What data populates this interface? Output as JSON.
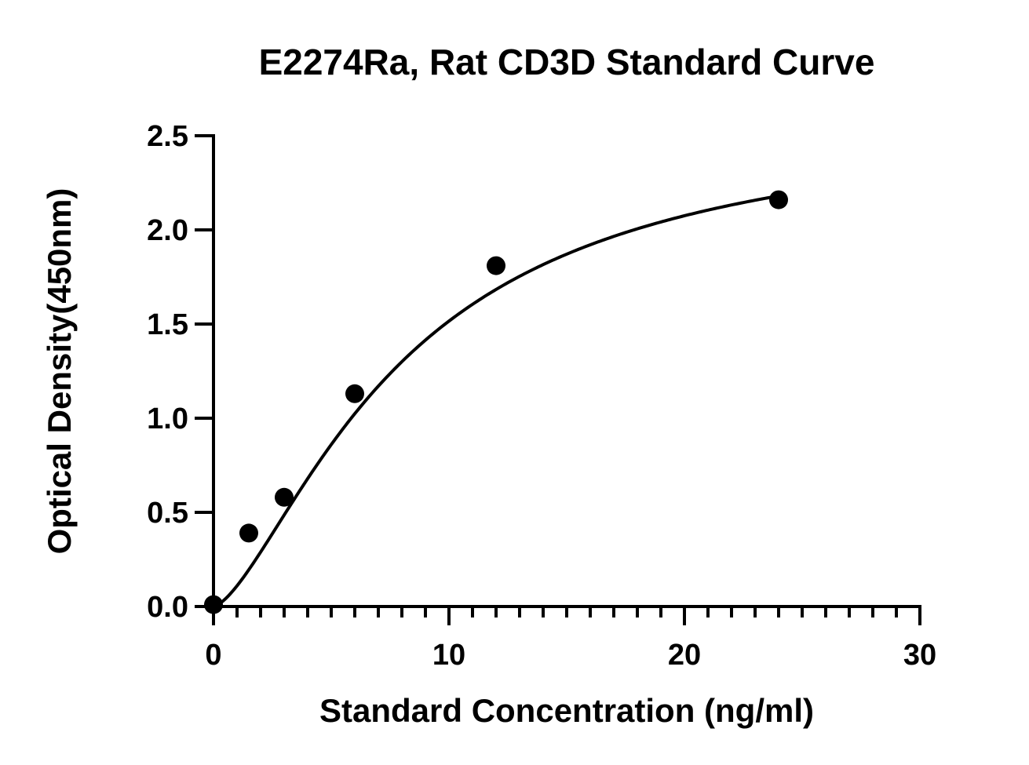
{
  "chart_data": {
    "type": "scatter",
    "title": "E2274Ra, Rat CD3D Standard Curve",
    "xlabel": "Standard Concentration (ng/ml)",
    "ylabel": "Optical Density(450nm)",
    "xlim": [
      0,
      30
    ],
    "ylim": [
      0,
      2.5
    ],
    "x_ticks": [
      0,
      10,
      20,
      30
    ],
    "x_tick_labels": [
      "0",
      "10",
      "20",
      "30"
    ],
    "x_minor_step": 1,
    "y_ticks": [
      0,
      0.5,
      1.0,
      1.5,
      2.0,
      2.5
    ],
    "y_tick_labels": [
      "0.0",
      "0.5",
      "1.0",
      "1.5",
      "2.0",
      "2.5"
    ],
    "grid": false,
    "legend": "none",
    "series": [
      {
        "x": [
          0,
          1.5,
          3,
          6,
          12,
          24
        ],
        "y": [
          0.01,
          0.39,
          0.58,
          1.13,
          1.81,
          2.16
        ]
      }
    ],
    "fit_curve": {
      "type": "4PL",
      "bottom": 0.0,
      "top": 2.6,
      "ec50": 8.0,
      "hill": 1.5,
      "x_range": [
        0,
        24
      ]
    }
  }
}
